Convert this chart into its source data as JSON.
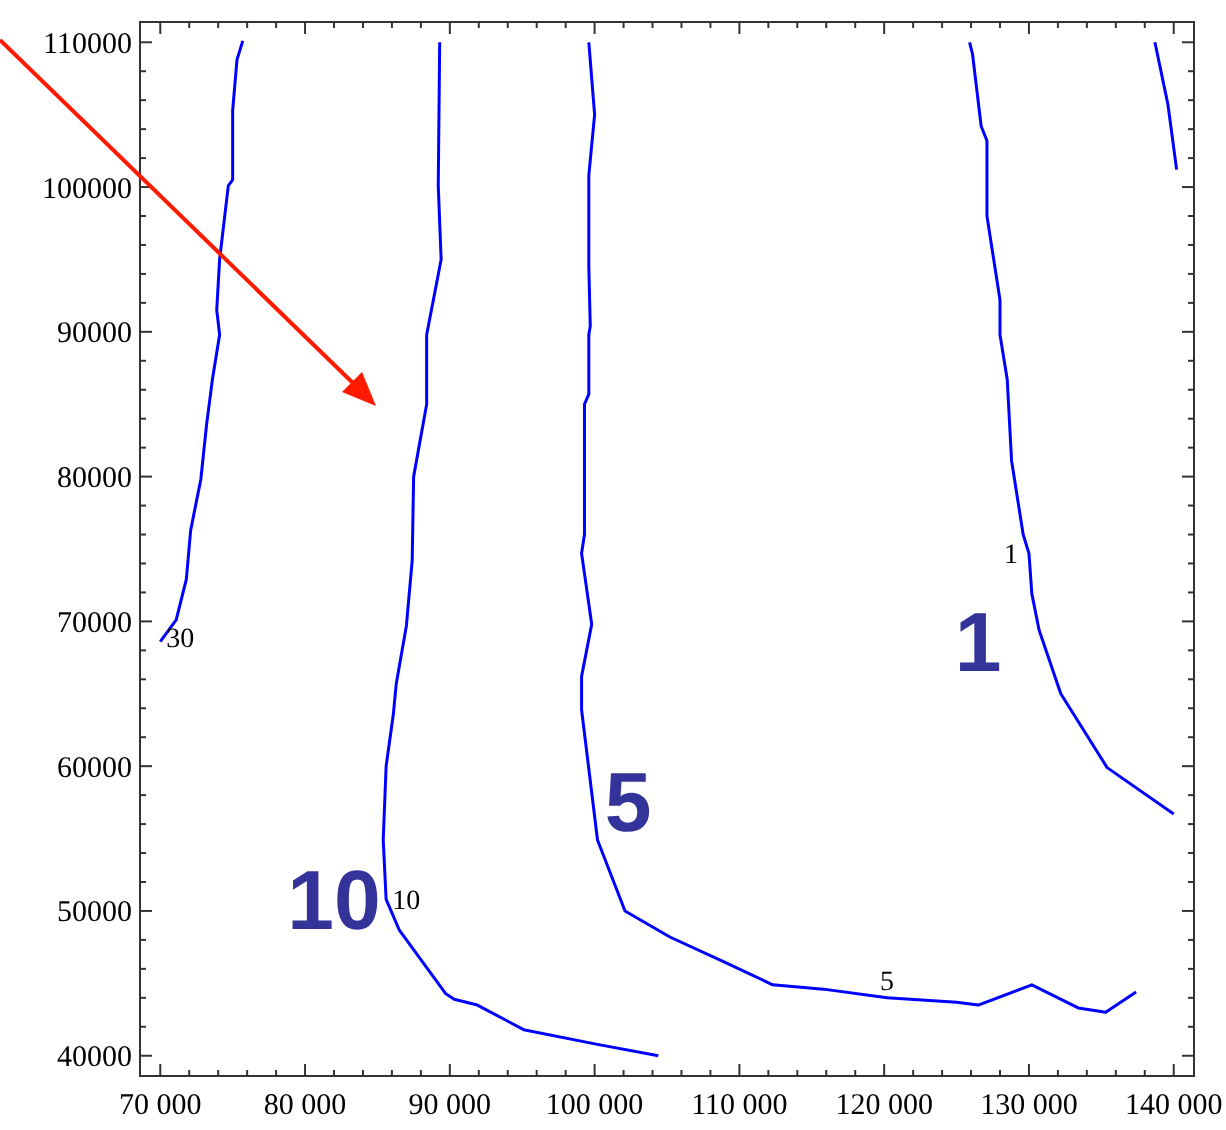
{
  "chart_data": {
    "type": "line",
    "xlim": [
      68600,
      141400
    ],
    "ylim": [
      38600,
      111400
    ],
    "xticks": [
      {
        "value": 70000,
        "label": "70 000"
      },
      {
        "value": 72000,
        "label": null
      },
      {
        "value": 74000,
        "label": null
      },
      {
        "value": 76000,
        "label": null
      },
      {
        "value": 78000,
        "label": null
      },
      {
        "value": 80000,
        "label": "80 000"
      },
      {
        "value": 82000,
        "label": null
      },
      {
        "value": 84000,
        "label": null
      },
      {
        "value": 86000,
        "label": null
      },
      {
        "value": 88000,
        "label": null
      },
      {
        "value": 90000,
        "label": "90 000"
      },
      {
        "value": 92000,
        "label": null
      },
      {
        "value": 94000,
        "label": null
      },
      {
        "value": 96000,
        "label": null
      },
      {
        "value": 98000,
        "label": null
      },
      {
        "value": 100000,
        "label": "100 000"
      },
      {
        "value": 102000,
        "label": null
      },
      {
        "value": 104000,
        "label": null
      },
      {
        "value": 106000,
        "label": null
      },
      {
        "value": 108000,
        "label": null
      },
      {
        "value": 110000,
        "label": "110 000"
      },
      {
        "value": 112000,
        "label": null
      },
      {
        "value": 114000,
        "label": null
      },
      {
        "value": 116000,
        "label": null
      },
      {
        "value": 118000,
        "label": null
      },
      {
        "value": 120000,
        "label": "120 000"
      },
      {
        "value": 122000,
        "label": null
      },
      {
        "value": 124000,
        "label": null
      },
      {
        "value": 126000,
        "label": null
      },
      {
        "value": 128000,
        "label": null
      },
      {
        "value": 130000,
        "label": "130 000"
      },
      {
        "value": 132000,
        "label": null
      },
      {
        "value": 134000,
        "label": null
      },
      {
        "value": 136000,
        "label": null
      },
      {
        "value": 138000,
        "label": null
      },
      {
        "value": 140000,
        "label": "140 000"
      }
    ],
    "yticks": [
      40000,
      {
        "value": 42000,
        "label": null
      },
      {
        "value": 44000,
        "label": null
      },
      {
        "value": 46000,
        "label": null
      },
      {
        "value": 48000,
        "label": null
      },
      50000,
      {
        "value": 52000,
        "label": null
      },
      {
        "value": 54000,
        "label": null
      },
      {
        "value": 56000,
        "label": null
      },
      {
        "value": 58000,
        "label": null
      },
      60000,
      {
        "value": 62000,
        "label": null
      },
      {
        "value": 64000,
        "label": null
      },
      {
        "value": 66000,
        "label": null
      },
      {
        "value": 68000,
        "label": null
      },
      70000,
      {
        "value": 72000,
        "label": null
      },
      {
        "value": 74000,
        "label": null
      },
      {
        "value": 76000,
        "label": null
      },
      {
        "value": 78000,
        "label": null
      },
      80000,
      {
        "value": 82000,
        "label": null
      },
      {
        "value": 84000,
        "label": null
      },
      {
        "value": 86000,
        "label": null
      },
      {
        "value": 88000,
        "label": null
      },
      90000,
      {
        "value": 92000,
        "label": null
      },
      {
        "value": 94000,
        "label": null
      },
      {
        "value": 96000,
        "label": null
      },
      {
        "value": 98000,
        "label": null
      },
      100000,
      {
        "value": 102000,
        "label": null
      },
      {
        "value": 104000,
        "label": null
      },
      {
        "value": 106000,
        "label": null
      },
      {
        "value": 108000,
        "label": null
      },
      110000
    ],
    "marker": "none",
    "line_style": "solid",
    "series": [
      {
        "name": "30",
        "color": "#0000ff",
        "x": [
          75700,
          75300,
          75000,
          75000,
          74700,
          74100,
          73900,
          74100,
          73600,
          73200,
          72800,
          72100,
          71800,
          71100,
          70000
        ],
        "values": [
          110100,
          108800,
          105300,
          100500,
          100100,
          95000,
          91500,
          89800,
          86700,
          83600,
          79800,
          76300,
          72900,
          70100,
          68600
        ]
      },
      {
        "name": "10",
        "color": "#0000ff",
        "x": [
          89300,
          89200,
          89400,
          88400,
          88400,
          87500,
          87400,
          87000,
          86300,
          86100,
          85600,
          85400,
          85600,
          86500,
          89700,
          90300,
          91900,
          95100,
          100100,
          104400
        ],
        "values": [
          110000,
          100100,
          95000,
          89800,
          85000,
          80000,
          74200,
          69700,
          65700,
          63600,
          60000,
          54900,
          50800,
          48700,
          44300,
          43900,
          43500,
          41800,
          40800,
          40000
        ]
      },
      {
        "name": "5",
        "color": "#0000ff",
        "x": [
          99600,
          100000,
          99600,
          99600,
          99700,
          99600,
          99600,
          99300,
          99300,
          99100,
          99800,
          99100,
          99100,
          100200,
          102100,
          105200,
          108900,
          112300,
          115800,
          120200,
          125000,
          126500,
          130200,
          133400,
          135300,
          137400
        ],
        "values": [
          110000,
          105000,
          100800,
          94500,
          90400,
          89800,
          85700,
          85000,
          76000,
          74700,
          69800,
          66200,
          63900,
          54900,
          50000,
          48200,
          46500,
          44900,
          44600,
          44000,
          43700,
          43500,
          44900,
          43300,
          43000,
          44400
        ]
      },
      {
        "name": "1",
        "color": "#0000ff",
        "x": [
          125900,
          126100,
          126700,
          127100,
          127100,
          128000,
          128000,
          128500,
          128800,
          129600,
          130000,
          130200,
          130700,
          132200,
          135400,
          140000
        ],
        "values": [
          110000,
          109200,
          104200,
          103200,
          98000,
          92200,
          89800,
          86700,
          81100,
          76000,
          74700,
          71900,
          69400,
          65000,
          59900,
          56700
        ]
      },
      {
        "color": "#0000ff",
        "x": [
          138700,
          139600,
          140200
        ],
        "values": [
          110000,
          105700,
          101200
        ]
      }
    ],
    "annotations": [
      "10",
      "5",
      "1"
    ]
  }
}
